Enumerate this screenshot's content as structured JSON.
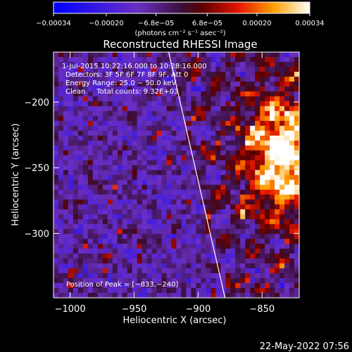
{
  "chart_data": {
    "type": "heatmap",
    "title": "Reconstructed RHESSI Image",
    "xlabel": "Heliocentric X (arcsec)",
    "ylabel": "Heliocentric Y (arcsec)",
    "xlim": [
      -1013,
      -821
    ],
    "ylim": [
      -349,
      -162
    ],
    "x_ticks": [
      -1000,
      -950,
      -900,
      -850
    ],
    "x_tick_labels": [
      "−1000",
      "−950",
      "−900",
      "−850"
    ],
    "y_ticks": [
      -200,
      -250,
      -300
    ],
    "y_tick_labels": [
      "−200",
      "−250",
      "−300"
    ],
    "colorbar": {
      "min": -0.00034,
      "max": 0.00034,
      "ticks": [
        -0.00034,
        -0.0002,
        -6.8e-05,
        6.8e-05,
        0.0002,
        0.00034
      ],
      "tick_labels": [
        "−0.00034",
        "−0.00020",
        "−6.8e−05",
        "6.8e−05",
        "0.00020",
        "0.00034"
      ],
      "unit_label": "(photons cm⁻² s⁻¹ asec⁻²)"
    },
    "peak": {
      "x": -833,
      "y": -240,
      "value": 0.00034
    },
    "limb_line": [
      [
        -923,
        -162
      ],
      [
        -879,
        -349
      ]
    ],
    "info_lines": [
      " 1-Jul-2015 10:22:16.000 to 10:28:16.000",
      "Detectors: 3F 5F 6F 7F 8F 9F, Att 0",
      "Energy Range: 25.0 − 50.0 keV",
      "Clean     Total counts: 9.32E+03"
    ],
    "peak_label": "Position of Peak = [−833,−240]",
    "grid": false
  },
  "footer": {
    "timestamp": "22-May-2022 07:56"
  }
}
